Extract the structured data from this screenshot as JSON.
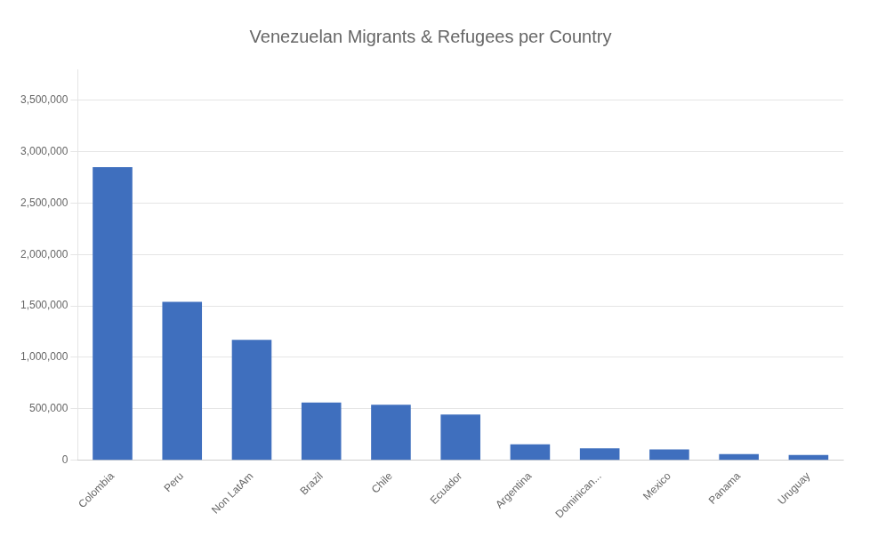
{
  "chart_data": {
    "type": "bar",
    "title": "Venezuelan Migrants & Refugees per Country",
    "categories": [
      "Colombia",
      "Peru",
      "Non LatAm",
      "Brazil",
      "Chile",
      "Ecuador",
      "Argentina",
      "Dominican...",
      "Mexico",
      "Panama",
      "Uruguay"
    ],
    "values": [
      2850000,
      1540000,
      1170000,
      560000,
      540000,
      445000,
      155000,
      115000,
      105000,
      60000,
      50000
    ],
    "color": "#3F6FBE",
    "ylim": [
      0,
      3800000
    ],
    "yticks": [
      0,
      {
        "value": 500000,
        "label": "500,000"
      },
      {
        "value": 1000000,
        "label": "1,000,000"
      },
      {
        "value": 1500000,
        "label": "1,500,000"
      },
      {
        "value": 2000000,
        "label": "2,000,000"
      },
      {
        "value": 2500000,
        "label": "2,500,000"
      },
      {
        "value": 3000000,
        "label": "3,000,000"
      },
      {
        "value": 3500000,
        "label": "3,500,000"
      }
    ],
    "grid": true
  }
}
